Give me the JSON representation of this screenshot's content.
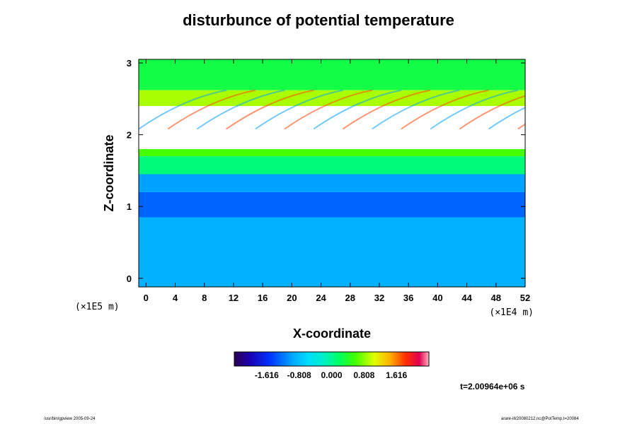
{
  "chart_data": {
    "type": "heatmap",
    "title": "disturbunce of potential temperature",
    "xlabel": "X-coordinate",
    "ylabel": "Z-coordinate",
    "x_scale_label": "(×1E4 m)",
    "y_scale_label": "(×1E5 m)",
    "x_ticks": [
      0,
      4,
      8,
      12,
      16,
      20,
      24,
      28,
      32,
      36,
      40,
      44,
      48,
      52
    ],
    "y_ticks": [
      0,
      1,
      2,
      3
    ],
    "xlim": [
      -1,
      52
    ],
    "ylim": [
      -0.12,
      3.05
    ],
    "colorbar": {
      "range": [
        -2.424,
        2.424
      ],
      "tick_values": [
        -1.616,
        -0.808,
        0.0,
        0.808,
        1.616
      ],
      "tick_labels": [
        "-1.616",
        "-0.808",
        "0.000",
        "0.808",
        "1.616"
      ]
    },
    "bands": [
      {
        "z_from": 2.62,
        "z_to": 3.05,
        "level": 0.3
      },
      {
        "z_from": 2.4,
        "z_to": 2.62,
        "level": 0.9
      },
      {
        "z_from": 2.05,
        "z_to": 2.4,
        "level": 3.0
      },
      {
        "z_from": 1.8,
        "z_to": 2.05,
        "level": 3.0
      },
      {
        "z_from": 1.7,
        "z_to": 1.8,
        "level": 0.6
      },
      {
        "z_from": 1.45,
        "z_to": 1.7,
        "level": 0.1
      },
      {
        "z_from": 1.2,
        "z_to": 1.45,
        "level": -1.0
      },
      {
        "z_from": 0.85,
        "z_to": 1.2,
        "level": -1.3
      },
      {
        "z_from": -0.12,
        "z_to": 0.85,
        "level": -0.9
      }
    ]
  },
  "time_label": "t=2.00964e+06 s",
  "footer_left": "/usr/bin/gpview 2005-09-24",
  "footer_right": "arare-ill/20080212.nc@PotTemp,t=20084"
}
